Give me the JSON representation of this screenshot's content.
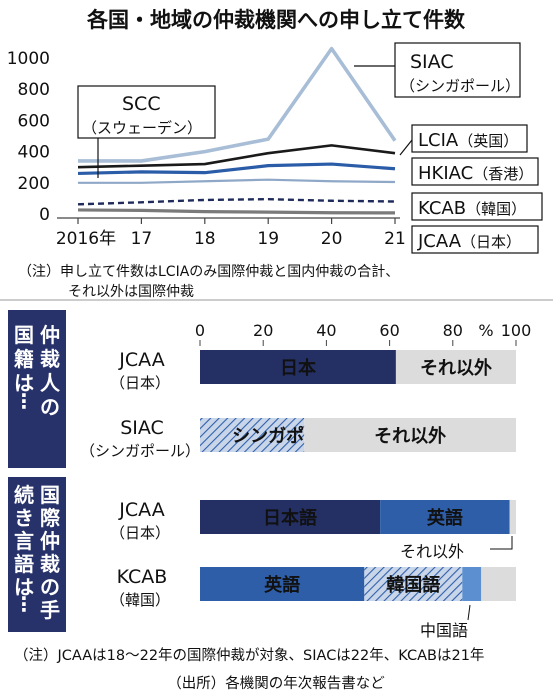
{
  "title": "各国・地域の仲裁機関への申し立て件数",
  "chart_data": [
    {
      "type": "line",
      "x": [
        "2016年",
        "17",
        "18",
        "19",
        "20",
        "21"
      ],
      "y_ticks": [
        "0",
        "200",
        "400",
        "600",
        "800",
        "1000"
      ],
      "ylim": [
        0,
        1000
      ],
      "series": [
        {
          "name": "SIAC",
          "sub": "（シンガポール）",
          "values": [
            340,
            340,
            400,
            480,
            1060,
            470
          ],
          "color": "#a8bdd6"
        },
        {
          "name": "LCIA",
          "sub": "（英国）",
          "values": [
            300,
            310,
            320,
            390,
            440,
            390
          ],
          "color": "#1a1a1a"
        },
        {
          "name": "HKIAC",
          "sub": "（香港）",
          "values": [
            260,
            270,
            265,
            310,
            320,
            290
          ],
          "color": "#2a5ca8"
        },
        {
          "name": "KCAB",
          "sub": "（韓国）",
          "values": [
            62,
            75,
            90,
            95,
            85,
            80
          ],
          "color": "#1e2a5a"
        },
        {
          "name": "JCAA",
          "sub": "（日本）",
          "values": [
            26,
            23,
            15,
            12,
            8,
            7
          ],
          "color": "#7a7a7a"
        },
        {
          "name": "SCC",
          "sub": "（スウェーデン）",
          "values": [
            200,
            200,
            210,
            220,
            210,
            205
          ],
          "color": "#8fa8c8"
        }
      ],
      "note": "（注）申し立て件数はLCIAのみ国際仲裁と国内仲裁の合計、それ以外は国際仲裁"
    },
    {
      "type": "bar",
      "title": "仲裁人の国籍は…",
      "x_ticks": [
        "0",
        "20",
        "40",
        "60",
        "80",
        "100"
      ],
      "unit": "%",
      "rows": [
        {
          "name": "JCAA",
          "sub": "（日本）",
          "segments": [
            {
              "label": "日本",
              "value": 62
            },
            {
              "label": "それ以外",
              "value": 38
            }
          ]
        },
        {
          "name": "SIAC",
          "sub": "（シンガポール）",
          "segments": [
            {
              "label": "シンガポール",
              "value": 33
            },
            {
              "label": "それ以外",
              "value": 67
            }
          ]
        }
      ]
    },
    {
      "type": "bar",
      "title": "国際仲裁の手続き言語は…",
      "rows": [
        {
          "name": "JCAA",
          "sub": "（日本）",
          "segments": [
            {
              "label": "日本語",
              "value": 57
            },
            {
              "label": "英語",
              "value": 41
            },
            {
              "label": "",
              "value": 2
            }
          ]
        },
        {
          "name": "KCAB",
          "sub": "（韓国）",
          "segments": [
            {
              "label": "英語",
              "value": 52
            },
            {
              "label": "韓国語",
              "value": 31
            },
            {
              "label": "",
              "value": 6
            },
            {
              "label": "",
              "value": 11
            }
          ]
        }
      ],
      "callouts": [
        "それ以外",
        "中国語"
      ]
    }
  ],
  "footnote": "（注）JCAAは18～22年の国際仲裁が対象、SIACは22年、KCABは21年",
  "source": "（出所）各機関の年次報告書など",
  "colors": {
    "navy": "#243064",
    "blue": "#2e5ea8",
    "light_blue": "#5b8fcf",
    "gray": "#dcdcdc",
    "panel": "#27326a"
  }
}
